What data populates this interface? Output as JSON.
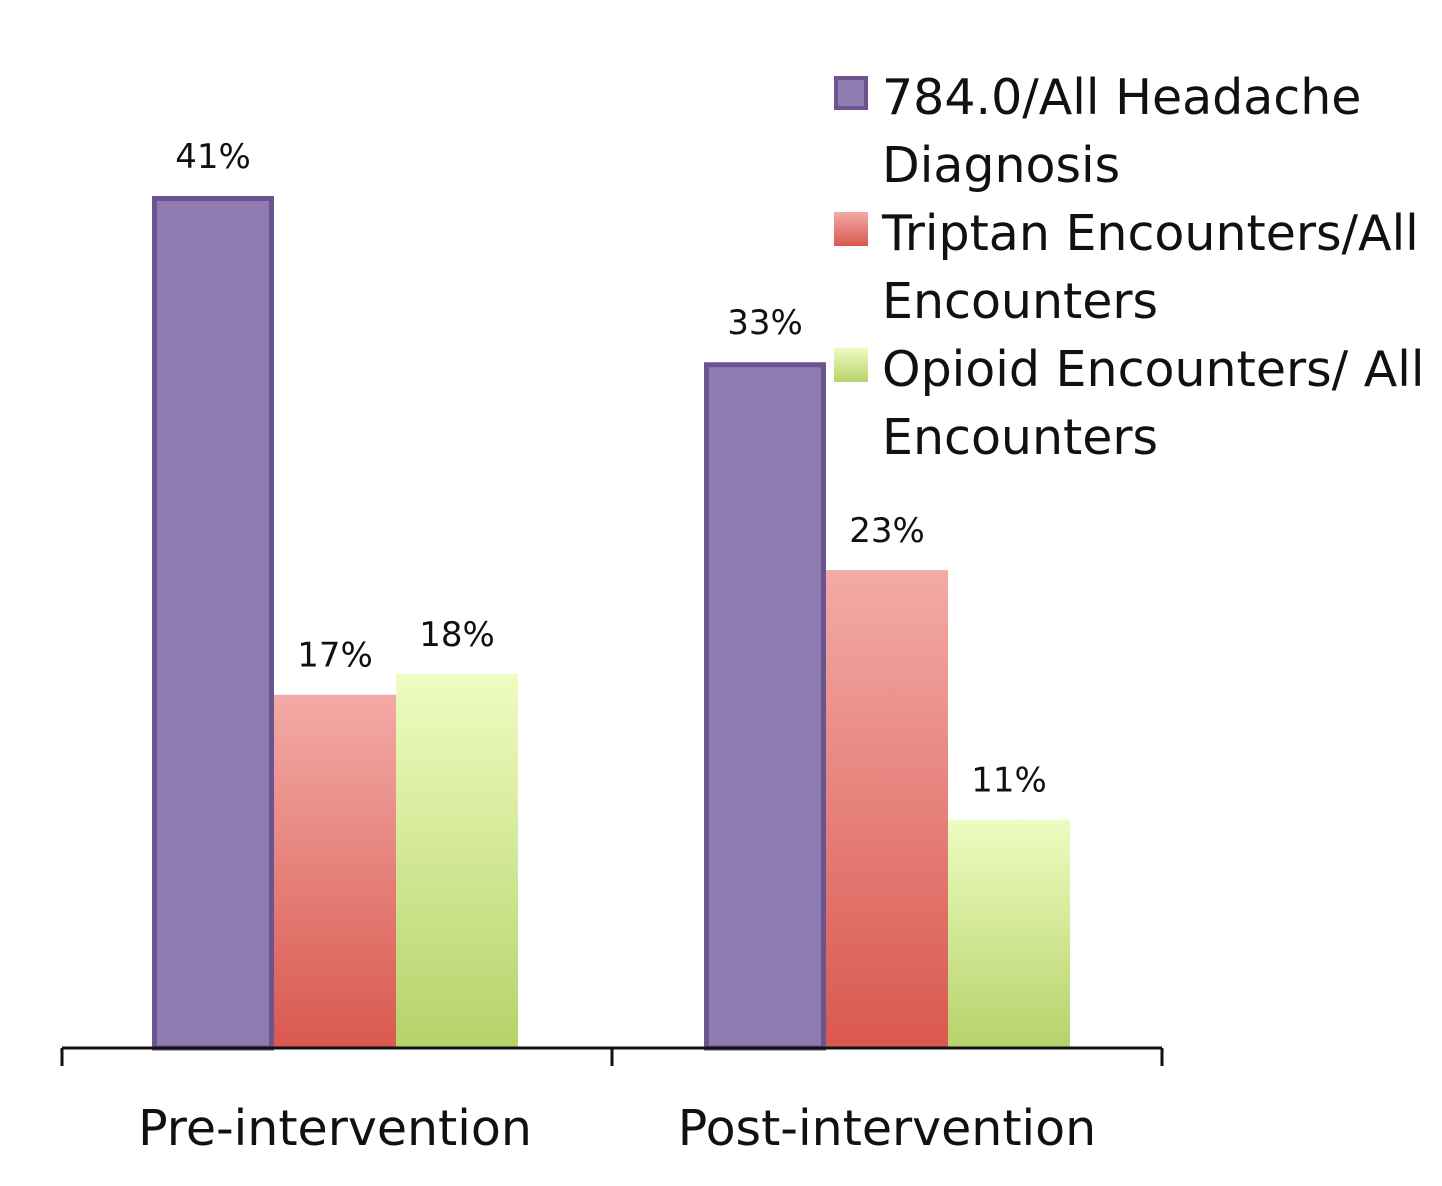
{
  "chart_data": {
    "type": "bar",
    "categories": [
      "Pre-intervention",
      "Post-intervention"
    ],
    "series": [
      {
        "name": "784.0/All Headache Diagnosis",
        "values": [
          41,
          33
        ],
        "labels": [
          "41%",
          "33%"
        ],
        "color": "#8f7cb0",
        "border": "#6a5590"
      },
      {
        "name": "Triptan Encounters/All Encounters",
        "values": [
          17,
          23
        ],
        "labels": [
          "17%",
          "23%"
        ],
        "color_top": "#f3aaa6",
        "color_bottom": "#d9584f"
      },
      {
        "name": "Opioid Encounters/ All Encounters",
        "values": [
          18,
          11
        ],
        "labels": [
          "18%",
          "11%"
        ],
        "color_top": "#eefcc0",
        "color_bottom": "#b6d26a"
      }
    ],
    "title": "",
    "xlabel": "",
    "ylabel": "",
    "ylim": [
      0,
      45
    ],
    "grid": false,
    "legend_position": "top-right"
  }
}
